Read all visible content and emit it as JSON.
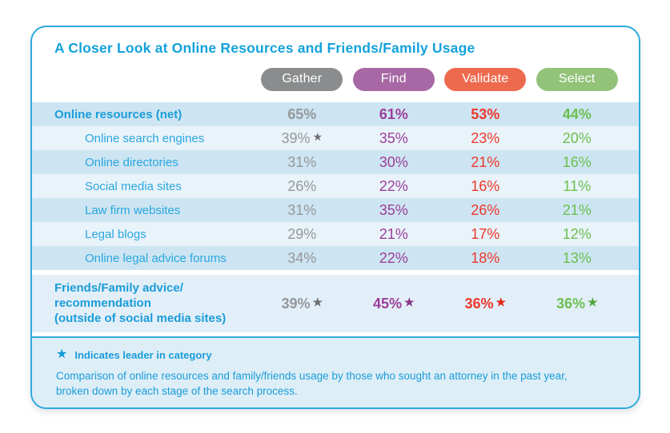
{
  "title": "A Closer Look at Online Resources and Friends/Family Usage",
  "table": {
    "columns": [
      {
        "label": "Gather",
        "pill_color": "#8a8c8e",
        "value_color": "#95979a",
        "star_color": "#6d6f71"
      },
      {
        "label": "Find",
        "pill_color": "#a868a5",
        "value_color": "#9c3f98",
        "star_color": "#8a3587"
      },
      {
        "label": "Validate",
        "pill_color": "#ee6a4e",
        "value_color": "#ee382b",
        "star_color": "#e1251b"
      },
      {
        "label": "Select",
        "pill_color": "#92c379",
        "value_color": "#6cbf4f",
        "star_color": "#55a83c"
      }
    ],
    "rows": [
      {
        "label": "Online resources (net)",
        "values": [
          "65%",
          "61%",
          "53%",
          "44%"
        ]
      },
      {
        "label": "Online search engines",
        "values": [
          "39%",
          "35%",
          "23%",
          "20%"
        ]
      },
      {
        "label": "Online directories",
        "values": [
          "31%",
          "30%",
          "21%",
          "16%"
        ]
      },
      {
        "label": "Social media sites",
        "values": [
          "26%",
          "22%",
          "16%",
          "11%"
        ]
      },
      {
        "label": "Law firm websites",
        "values": [
          "31%",
          "35%",
          "26%",
          "21%"
        ]
      },
      {
        "label": "Legal blogs",
        "values": [
          "29%",
          "21%",
          "17%",
          "12%"
        ]
      },
      {
        "label": "Online legal advice forums",
        "values": [
          "34%",
          "22%",
          "18%",
          "13%"
        ]
      },
      {
        "label": "Friends/Family advice/recommendation (outside of social media sites)",
        "label_lines": [
          "Friends/Family advice/",
          "recommendation",
          "(outside of social media sites)"
        ],
        "values": [
          "39%",
          "45%",
          "36%",
          "36%"
        ]
      }
    ]
  },
  "legend": {
    "star_glyph": "★",
    "label": "Indicates leader in category"
  },
  "description": "Comparison of online resources and family/friends usage by those who sought an attorney in the past year, broken down by each stage of the search process.",
  "colors": {
    "panel_border": "#2fa9dd",
    "title_blue": "#13a2dc",
    "row_label_blue": "#2aa7e0",
    "bold_label_blue": "#1b9cd9",
    "stripe_dark": "#cde5f2",
    "stripe_light": "#e9f3fa",
    "friends_row_bg": "#e2eff8",
    "footer_bg": "#ddeef7"
  },
  "chart_data": {
    "type": "table",
    "title": "A Closer Look at Online Resources and Friends/Family Usage",
    "columns": [
      "Gather",
      "Find",
      "Validate",
      "Select"
    ],
    "units": "%",
    "rows": [
      {
        "label": "Online resources (net)",
        "values": [
          65,
          61,
          53,
          44
        ],
        "leaders": []
      },
      {
        "label": "Online search engines",
        "values": [
          39,
          35,
          23,
          20
        ],
        "leaders": [
          "Gather"
        ]
      },
      {
        "label": "Online directories",
        "values": [
          31,
          30,
          21,
          16
        ],
        "leaders": []
      },
      {
        "label": "Social media sites",
        "values": [
          26,
          22,
          16,
          11
        ],
        "leaders": []
      },
      {
        "label": "Law firm websites",
        "values": [
          31,
          35,
          26,
          21
        ],
        "leaders": []
      },
      {
        "label": "Legal blogs",
        "values": [
          29,
          21,
          17,
          12
        ],
        "leaders": []
      },
      {
        "label": "Online legal advice forums",
        "values": [
          34,
          22,
          18,
          13
        ],
        "leaders": []
      },
      {
        "label": "Friends/Family advice/recommendation (outside of social media sites)",
        "values": [
          39,
          45,
          36,
          36
        ],
        "leaders": [
          "Gather",
          "Find",
          "Validate",
          "Select"
        ]
      }
    ],
    "footnote_legend": "★ Indicates leader in category",
    "caption": "Comparison of online resources and family/friends usage by those who sought an attorney in the past year, broken down by each stage of the search process."
  }
}
